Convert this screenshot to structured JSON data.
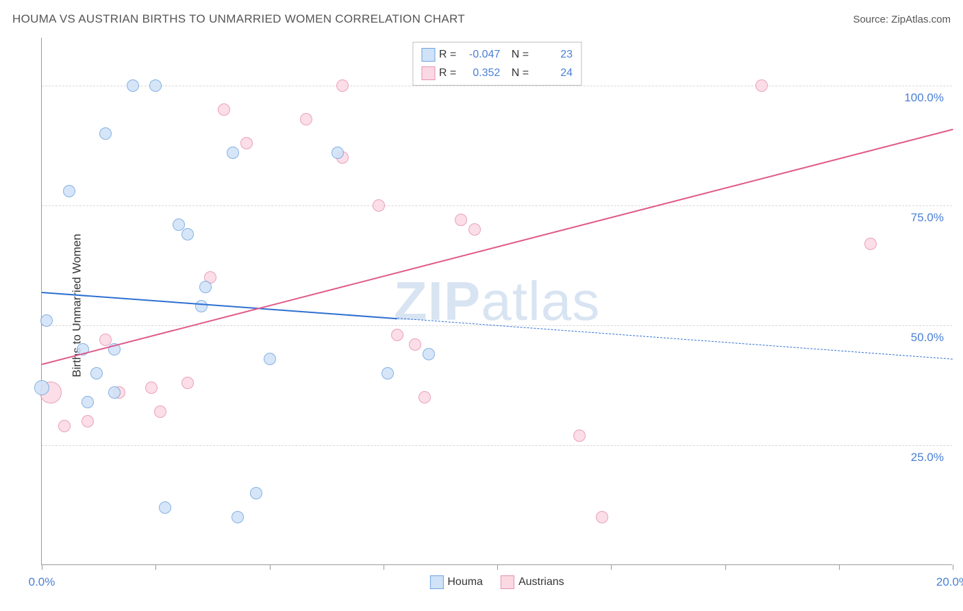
{
  "title": "HOUMA VS AUSTRIAN BIRTHS TO UNMARRIED WOMEN CORRELATION CHART",
  "source": "Source: ZipAtlas.com",
  "ylabel": "Births to Unmarried Women",
  "watermark_left": "ZIP",
  "watermark_right": "atlas",
  "chart": {
    "type": "scatter",
    "xlim": [
      0,
      20
    ],
    "ylim": [
      0,
      110
    ],
    "x_tick_positions": [
      0,
      2.5,
      5,
      7.5,
      10,
      12.5,
      15,
      17.5,
      20
    ],
    "x_tick_labels": {
      "0": "0.0%",
      "20": "20.0%"
    },
    "y_grid_positions": [
      25,
      50,
      75,
      100
    ],
    "y_tick_labels": {
      "25": "25.0%",
      "50": "50.0%",
      "75": "75.0%",
      "100": "100.0%"
    },
    "background_color": "#ffffff",
    "grid_color": "#d6d6d6",
    "axis_color": "#999999",
    "tick_label_color": "#4a7fd6",
    "series": {
      "houma": {
        "label": "Houma",
        "fill": "#cfe2f7",
        "stroke": "#6fa3de",
        "marker_radius": 9,
        "marker_opacity": 0.85,
        "trend": {
          "x1": 0,
          "y1": 57,
          "x2": 20,
          "y2": 43,
          "color": "#2d6fd1",
          "width": 2.5,
          "solid_until_x": 7.8
        },
        "points": [
          {
            "x": 0.0,
            "y": 37,
            "r": 11
          },
          {
            "x": 0.1,
            "y": 51
          },
          {
            "x": 0.6,
            "y": 78
          },
          {
            "x": 0.9,
            "y": 45
          },
          {
            "x": 1.0,
            "y": 34
          },
          {
            "x": 1.2,
            "y": 40
          },
          {
            "x": 1.4,
            "y": 90
          },
          {
            "x": 1.6,
            "y": 36
          },
          {
            "x": 1.6,
            "y": 45
          },
          {
            "x": 2.0,
            "y": 100
          },
          {
            "x": 2.5,
            "y": 100
          },
          {
            "x": 2.7,
            "y": 12
          },
          {
            "x": 3.0,
            "y": 71
          },
          {
            "x": 3.2,
            "y": 69
          },
          {
            "x": 3.5,
            "y": 54
          },
          {
            "x": 3.6,
            "y": 58
          },
          {
            "x": 4.2,
            "y": 86
          },
          {
            "x": 4.3,
            "y": 10
          },
          {
            "x": 4.7,
            "y": 15
          },
          {
            "x": 5.0,
            "y": 43
          },
          {
            "x": 6.5,
            "y": 86
          },
          {
            "x": 7.6,
            "y": 40
          },
          {
            "x": 8.5,
            "y": 44
          }
        ],
        "R": "-0.047",
        "N": "23"
      },
      "austrians": {
        "label": "Austrians",
        "fill": "#fbd9e3",
        "stroke": "#e78fb0",
        "marker_radius": 9,
        "marker_opacity": 0.85,
        "trend": {
          "x1": 0,
          "y1": 42,
          "x2": 20,
          "y2": 91,
          "color": "#e05a8a",
          "width": 2.5,
          "solid_until_x": 20
        },
        "points": [
          {
            "x": 0.2,
            "y": 36,
            "r": 16
          },
          {
            "x": 0.5,
            "y": 29
          },
          {
            "x": 1.0,
            "y": 30
          },
          {
            "x": 1.4,
            "y": 47
          },
          {
            "x": 1.7,
            "y": 36
          },
          {
            "x": 2.4,
            "y": 37
          },
          {
            "x": 2.6,
            "y": 32
          },
          {
            "x": 3.2,
            "y": 38
          },
          {
            "x": 3.7,
            "y": 60
          },
          {
            "x": 4.0,
            "y": 95
          },
          {
            "x": 4.5,
            "y": 88
          },
          {
            "x": 5.8,
            "y": 93
          },
          {
            "x": 6.6,
            "y": 85
          },
          {
            "x": 6.6,
            "y": 100
          },
          {
            "x": 7.4,
            "y": 75
          },
          {
            "x": 7.8,
            "y": 48
          },
          {
            "x": 8.2,
            "y": 46
          },
          {
            "x": 8.4,
            "y": 35
          },
          {
            "x": 9.2,
            "y": 72
          },
          {
            "x": 9.5,
            "y": 70
          },
          {
            "x": 11.8,
            "y": 27
          },
          {
            "x": 12.3,
            "y": 10
          },
          {
            "x": 15.8,
            "y": 100
          },
          {
            "x": 18.2,
            "y": 67
          }
        ],
        "R": "0.352",
        "N": "24"
      }
    },
    "stats_box": {
      "R_label": "R =",
      "N_label": "N ="
    }
  }
}
